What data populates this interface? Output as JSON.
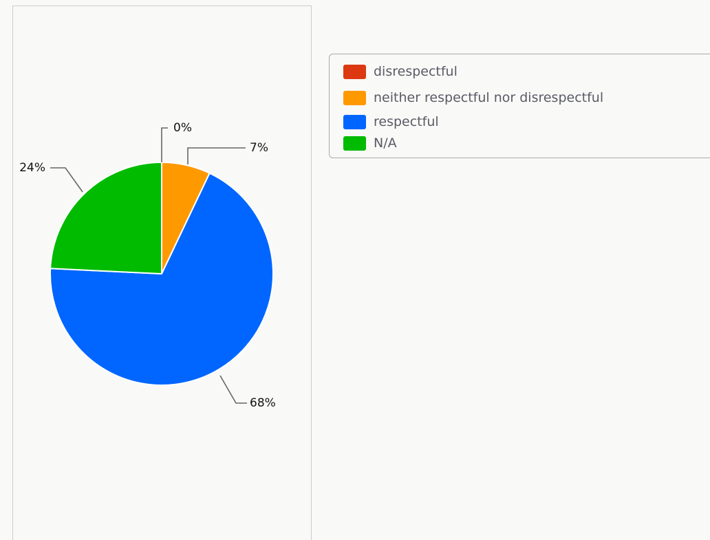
{
  "chart_data": {
    "type": "pie",
    "slices": [
      {
        "label": "disrespectful",
        "value": 0,
        "display": "0%",
        "color": "#dc3912"
      },
      {
        "label": "neither respectful nor disrespectful",
        "value": 7,
        "display": "7%",
        "color": "#ff9900"
      },
      {
        "label": "respectful",
        "value": 68,
        "display": "68%",
        "color": "#0066ff"
      },
      {
        "label": "N/A",
        "value": 24,
        "display": "24%",
        "color": "#00bb00"
      }
    ],
    "legend_position": "right",
    "start": "top",
    "direction": "clockwise"
  },
  "colors": {
    "background": "#f9f9f7",
    "panel_border": "#cccccc",
    "slice_border": "#ffffff",
    "leader": "#666666"
  }
}
